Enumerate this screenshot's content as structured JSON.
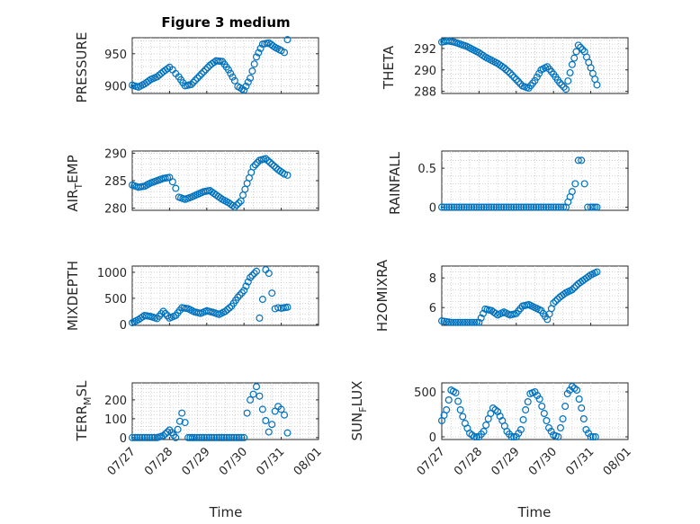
{
  "figure": {
    "title": "Figure 3 medium"
  },
  "colors": {
    "marker": "#0072BD",
    "axis": "#262626",
    "grid": "#c9c9c9"
  },
  "chart_data": [
    {
      "type": "scatter",
      "panel": "pressure",
      "ylabel": "PRESSURE",
      "title": "Figure 3 medium",
      "xlim": [
        "07/27",
        "08/01"
      ],
      "ylim": [
        888,
        975
      ],
      "yticks": [
        900,
        950
      ],
      "grid": true,
      "x": [
        "07/27 00:00",
        "07/27 04:00",
        "07/27 08:00",
        "07/27 12:00",
        "07/27 16:00",
        "07/27 20:00",
        "07/28 00:00",
        "07/28 02:00",
        "07/28 04:00",
        "07/28 06:00",
        "07/28 10:00",
        "07/28 14:00",
        "07/28 18:00",
        "07/28 22:00",
        "07/29 02:00",
        "07/29 06:00",
        "07/29 10:00",
        "07/29 14:00",
        "07/29 18:00",
        "07/29 20:00",
        "07/30 00:00",
        "07/30 04:00",
        "07/30 08:00",
        "07/30 12:00",
        "07/30 16:00",
        "07/30 20:00",
        "07/31 00:00",
        "07/31 02:00",
        "07/31 04:00"
      ],
      "y": [
        901,
        898,
        903,
        910,
        914,
        922,
        929,
        925,
        919,
        914,
        900,
        902,
        912,
        922,
        932,
        939,
        938,
        925,
        908,
        899,
        893,
        912,
        945,
        965,
        967,
        960,
        955,
        952,
        972
      ]
    },
    {
      "type": "scatter",
      "panel": "theta",
      "ylabel": "THETA",
      "xlim": [
        "07/27",
        "08/01"
      ],
      "ylim": [
        287.8,
        293
      ],
      "yticks": [
        288,
        290,
        292
      ],
      "grid": true,
      "x": [
        "07/27 00:00",
        "07/27 04:00",
        "07/27 08:00",
        "07/27 12:00",
        "07/27 16:00",
        "07/27 20:00",
        "07/28 00:00",
        "07/28 04:00",
        "07/28 08:00",
        "07/28 12:00",
        "07/28 16:00",
        "07/28 20:00",
        "07/29 00:00",
        "07/29 04:00",
        "07/29 08:00",
        "07/29 12:00",
        "07/29 16:00",
        "07/29 20:00",
        "07/30 00:00",
        "07/30 04:00",
        "07/30 08:00",
        "07/30 12:00",
        "07/30 16:00",
        "07/30 20:00",
        "07/31 00:00",
        "07/31 04:00"
      ],
      "y": [
        292.6,
        292.7,
        292.6,
        292.4,
        292.2,
        291.9,
        291.6,
        291.2,
        290.9,
        290.6,
        290.2,
        289.7,
        289.1,
        288.5,
        288.3,
        289.0,
        290.0,
        290.3,
        289.6,
        288.8,
        288.2,
        290.5,
        292.3,
        291.7,
        290.2,
        288.6
      ]
    },
    {
      "type": "scatter",
      "panel": "air_temp",
      "ylabel": "AIR_TEMP",
      "xlim": [
        "07/27",
        "08/01"
      ],
      "ylim": [
        279.6,
        290.4
      ],
      "yticks": [
        280,
        285,
        290
      ],
      "grid": true,
      "x": [
        "07/27 00:00",
        "07/27 04:00",
        "07/27 08:00",
        "07/27 12:00",
        "07/27 16:00",
        "07/27 20:00",
        "07/28 00:00",
        "07/28 02:00",
        "07/28 04:00",
        "07/28 06:00",
        "07/28 10:00",
        "07/28 14:00",
        "07/28 18:00",
        "07/28 22:00",
        "07/29 02:00",
        "07/29 06:00",
        "07/29 10:00",
        "07/29 14:00",
        "07/29 18:00",
        "07/29 22:00",
        "07/30 02:00",
        "07/30 06:00",
        "07/30 10:00",
        "07/30 14:00",
        "07/30 18:00",
        "07/30 22:00",
        "07/31 02:00",
        "07/31 04:00"
      ],
      "y": [
        284.2,
        283.8,
        284.0,
        284.6,
        285.0,
        285.4,
        285.6,
        284.8,
        283.6,
        282.0,
        281.6,
        282.0,
        282.5,
        283.0,
        283.2,
        282.4,
        281.6,
        281.0,
        280.2,
        281.3,
        284.5,
        287.5,
        288.7,
        289.0,
        288.0,
        287.0,
        286.2,
        286.0
      ]
    },
    {
      "type": "scatter",
      "panel": "rainfall",
      "ylabel": "RAINFALL",
      "xlim": [
        "07/27",
        "08/01"
      ],
      "ylim": [
        -0.04,
        0.72
      ],
      "yticks": [
        0,
        0.5
      ],
      "grid": true,
      "x": [
        "07/27 00:00",
        "07/27 08:00",
        "07/27 16:00",
        "07/28 00:00",
        "07/28 08:00",
        "07/28 16:00",
        "07/29 00:00",
        "07/29 08:00",
        "07/29 16:00",
        "07/30 00:00",
        "07/30 08:00",
        "07/30 12:00",
        "07/30 14:00",
        "07/30 16:00",
        "07/30 18:00",
        "07/30 20:00",
        "07/30 22:00",
        "07/31 00:00",
        "07/31 04:00"
      ],
      "y": [
        0,
        0,
        0,
        0,
        0,
        0,
        0,
        0,
        0,
        0,
        0,
        0.2,
        0.3,
        0.6,
        0.6,
        0.3,
        0,
        0,
        0
      ]
    },
    {
      "type": "scatter",
      "panel": "mixdepth",
      "ylabel": "MIXDEPTH",
      "xlim": [
        "07/27",
        "08/01"
      ],
      "ylim": [
        -20,
        1120
      ],
      "yticks": [
        0,
        500,
        1000
      ],
      "grid": true,
      "x": [
        "07/27 00:00",
        "07/27 04:00",
        "07/27 08:00",
        "07/27 12:00",
        "07/27 16:00",
        "07/27 20:00",
        "07/28 00:00",
        "07/28 04:00",
        "07/28 08:00",
        "07/28 12:00",
        "07/28 16:00",
        "07/28 20:00",
        "07/29 00:00",
        "07/29 04:00",
        "07/29 08:00",
        "07/29 12:00",
        "07/29 16:00",
        "07/29 20:00",
        "07/30 00:00",
        "07/30 04:00",
        "07/30 08:00",
        "07/30 10:00",
        "07/30 12:00",
        "07/30 14:00",
        "07/30 16:00",
        "07/30 18:00",
        "07/30 20:00",
        "07/30 22:00",
        "07/31 00:00",
        "07/31 04:00"
      ],
      "y": [
        30,
        90,
        170,
        150,
        110,
        250,
        120,
        170,
        320,
        300,
        240,
        210,
        260,
        230,
        190,
        250,
        350,
        520,
        650,
        900,
        1020,
        120,
        480,
        1050,
        980,
        600,
        300,
        320,
        310,
        330
      ]
    },
    {
      "type": "scatter",
      "panel": "h2omixra",
      "ylabel": "H2OMIXRA",
      "xlim": [
        "07/27",
        "08/01"
      ],
      "ylim": [
        4.8,
        8.8
      ],
      "yticks": [
        6,
        8
      ],
      "grid": true,
      "x": [
        "07/27 00:00",
        "07/27 06:00",
        "07/27 12:00",
        "07/27 18:00",
        "07/28 00:00",
        "07/28 04:00",
        "07/28 08:00",
        "07/28 12:00",
        "07/28 16:00",
        "07/28 20:00",
        "07/29 00:00",
        "07/29 04:00",
        "07/29 08:00",
        "07/29 12:00",
        "07/29 16:00",
        "07/29 20:00",
        "07/30 00:00",
        "07/30 04:00",
        "07/30 08:00",
        "07/30 12:00",
        "07/30 16:00",
        "07/30 20:00",
        "07/31 00:00",
        "07/31 04:00"
      ],
      "y": [
        5.1,
        5.0,
        5.0,
        5.0,
        5.0,
        5.9,
        5.8,
        5.5,
        5.7,
        5.5,
        5.6,
        6.1,
        6.2,
        6.0,
        5.8,
        5.2,
        6.3,
        6.7,
        7.0,
        7.2,
        7.6,
        7.9,
        8.2,
        8.4
      ]
    },
    {
      "type": "scatter",
      "panel": "terr_msl",
      "ylabel": "TERR_MSL",
      "xlim": [
        "07/27",
        "08/01"
      ],
      "ylim": [
        -10,
        290
      ],
      "yticks": [
        0,
        100,
        200
      ],
      "grid": true,
      "x": [
        "07/27 00:00",
        "07/27 08:00",
        "07/27 16:00",
        "07/27 20:00",
        "07/28 00:00",
        "07/28 04:00",
        "07/28 08:00",
        "07/28 10:00",
        "07/28 12:00",
        "07/28 16:00",
        "07/29 00:00",
        "07/29 08:00",
        "07/29 16:00",
        "07/30 00:00",
        "07/30 02:00",
        "07/30 04:00",
        "07/30 06:00",
        "07/30 08:00",
        "07/30 10:00",
        "07/30 12:00",
        "07/30 14:00",
        "07/30 16:00",
        "07/30 18:00",
        "07/30 20:00",
        "07/30 22:00",
        "07/31 00:00",
        "07/31 02:00",
        "07/31 04:00"
      ],
      "y": [
        0,
        0,
        0,
        10,
        40,
        0,
        130,
        80,
        0,
        0,
        0,
        0,
        0,
        0,
        130,
        200,
        230,
        270,
        220,
        150,
        90,
        30,
        70,
        140,
        165,
        150,
        120,
        25
      ]
    },
    {
      "type": "scatter",
      "panel": "sun_flux",
      "ylabel": "SUN_FLUX",
      "xlim": [
        "07/27",
        "08/01"
      ],
      "ylim": [
        -30,
        600
      ],
      "yticks": [
        0,
        500
      ],
      "grid": true,
      "x": [
        "07/27 00:00",
        "07/27 03:00",
        "07/27 06:00",
        "07/27 09:00",
        "07/27 12:00",
        "07/27 15:00",
        "07/27 18:00",
        "07/27 21:00",
        "07/28 00:00",
        "07/28 03:00",
        "07/28 06:00",
        "07/28 09:00",
        "07/28 12:00",
        "07/28 15:00",
        "07/28 18:00",
        "07/28 21:00",
        "07/29 00:00",
        "07/29 03:00",
        "07/29 06:00",
        "07/29 09:00",
        "07/29 12:00",
        "07/29 15:00",
        "07/29 18:00",
        "07/29 21:00",
        "07/30 00:00",
        "07/30 03:00",
        "07/30 06:00",
        "07/30 09:00",
        "07/30 12:00",
        "07/30 15:00",
        "07/30 18:00",
        "07/30 21:00",
        "07/31 00:00",
        "07/31 03:00"
      ],
      "y": [
        180,
        300,
        520,
        490,
        300,
        150,
        40,
        0,
        0,
        60,
        200,
        320,
        280,
        180,
        60,
        0,
        0,
        80,
        300,
        480,
        500,
        420,
        260,
        100,
        20,
        0,
        200,
        480,
        560,
        520,
        320,
        80,
        0,
        0
      ]
    }
  ],
  "axes": {
    "pressure": {
      "ylabel": "PRESSURE",
      "yticks": [
        "900",
        "950"
      ]
    },
    "theta": {
      "ylabel": "THETA",
      "yticks": [
        "288",
        "290",
        "292"
      ]
    },
    "air_temp": {
      "ylabel_main": "AIR",
      "ylabel_sub": "T",
      "ylabel_rest": "EMP",
      "yticks": [
        "280",
        "285",
        "290"
      ]
    },
    "rainfall": {
      "ylabel": "RAINFALL",
      "yticks": [
        "0",
        "0.5"
      ]
    },
    "mixdepth": {
      "ylabel": "MIXDEPTH",
      "yticks": [
        "0",
        "500",
        "1000"
      ]
    },
    "h2omixra": {
      "ylabel": "H2OMIXRA",
      "yticks": [
        "6",
        "8"
      ]
    },
    "terr_msl": {
      "ylabel_main": "TERR",
      "ylabel_sub": "M",
      "ylabel_rest": "SL",
      "yticks": [
        "0",
        "100",
        "200"
      ]
    },
    "sun_flux": {
      "ylabel_main": "SUN",
      "ylabel_sub": "F",
      "ylabel_rest": "LUX",
      "yticks": [
        "0",
        "500"
      ]
    }
  },
  "xaxis": {
    "ticks": [
      "07/27",
      "07/28",
      "07/29",
      "07/30",
      "07/31",
      "08/01"
    ],
    "label": "Time"
  }
}
